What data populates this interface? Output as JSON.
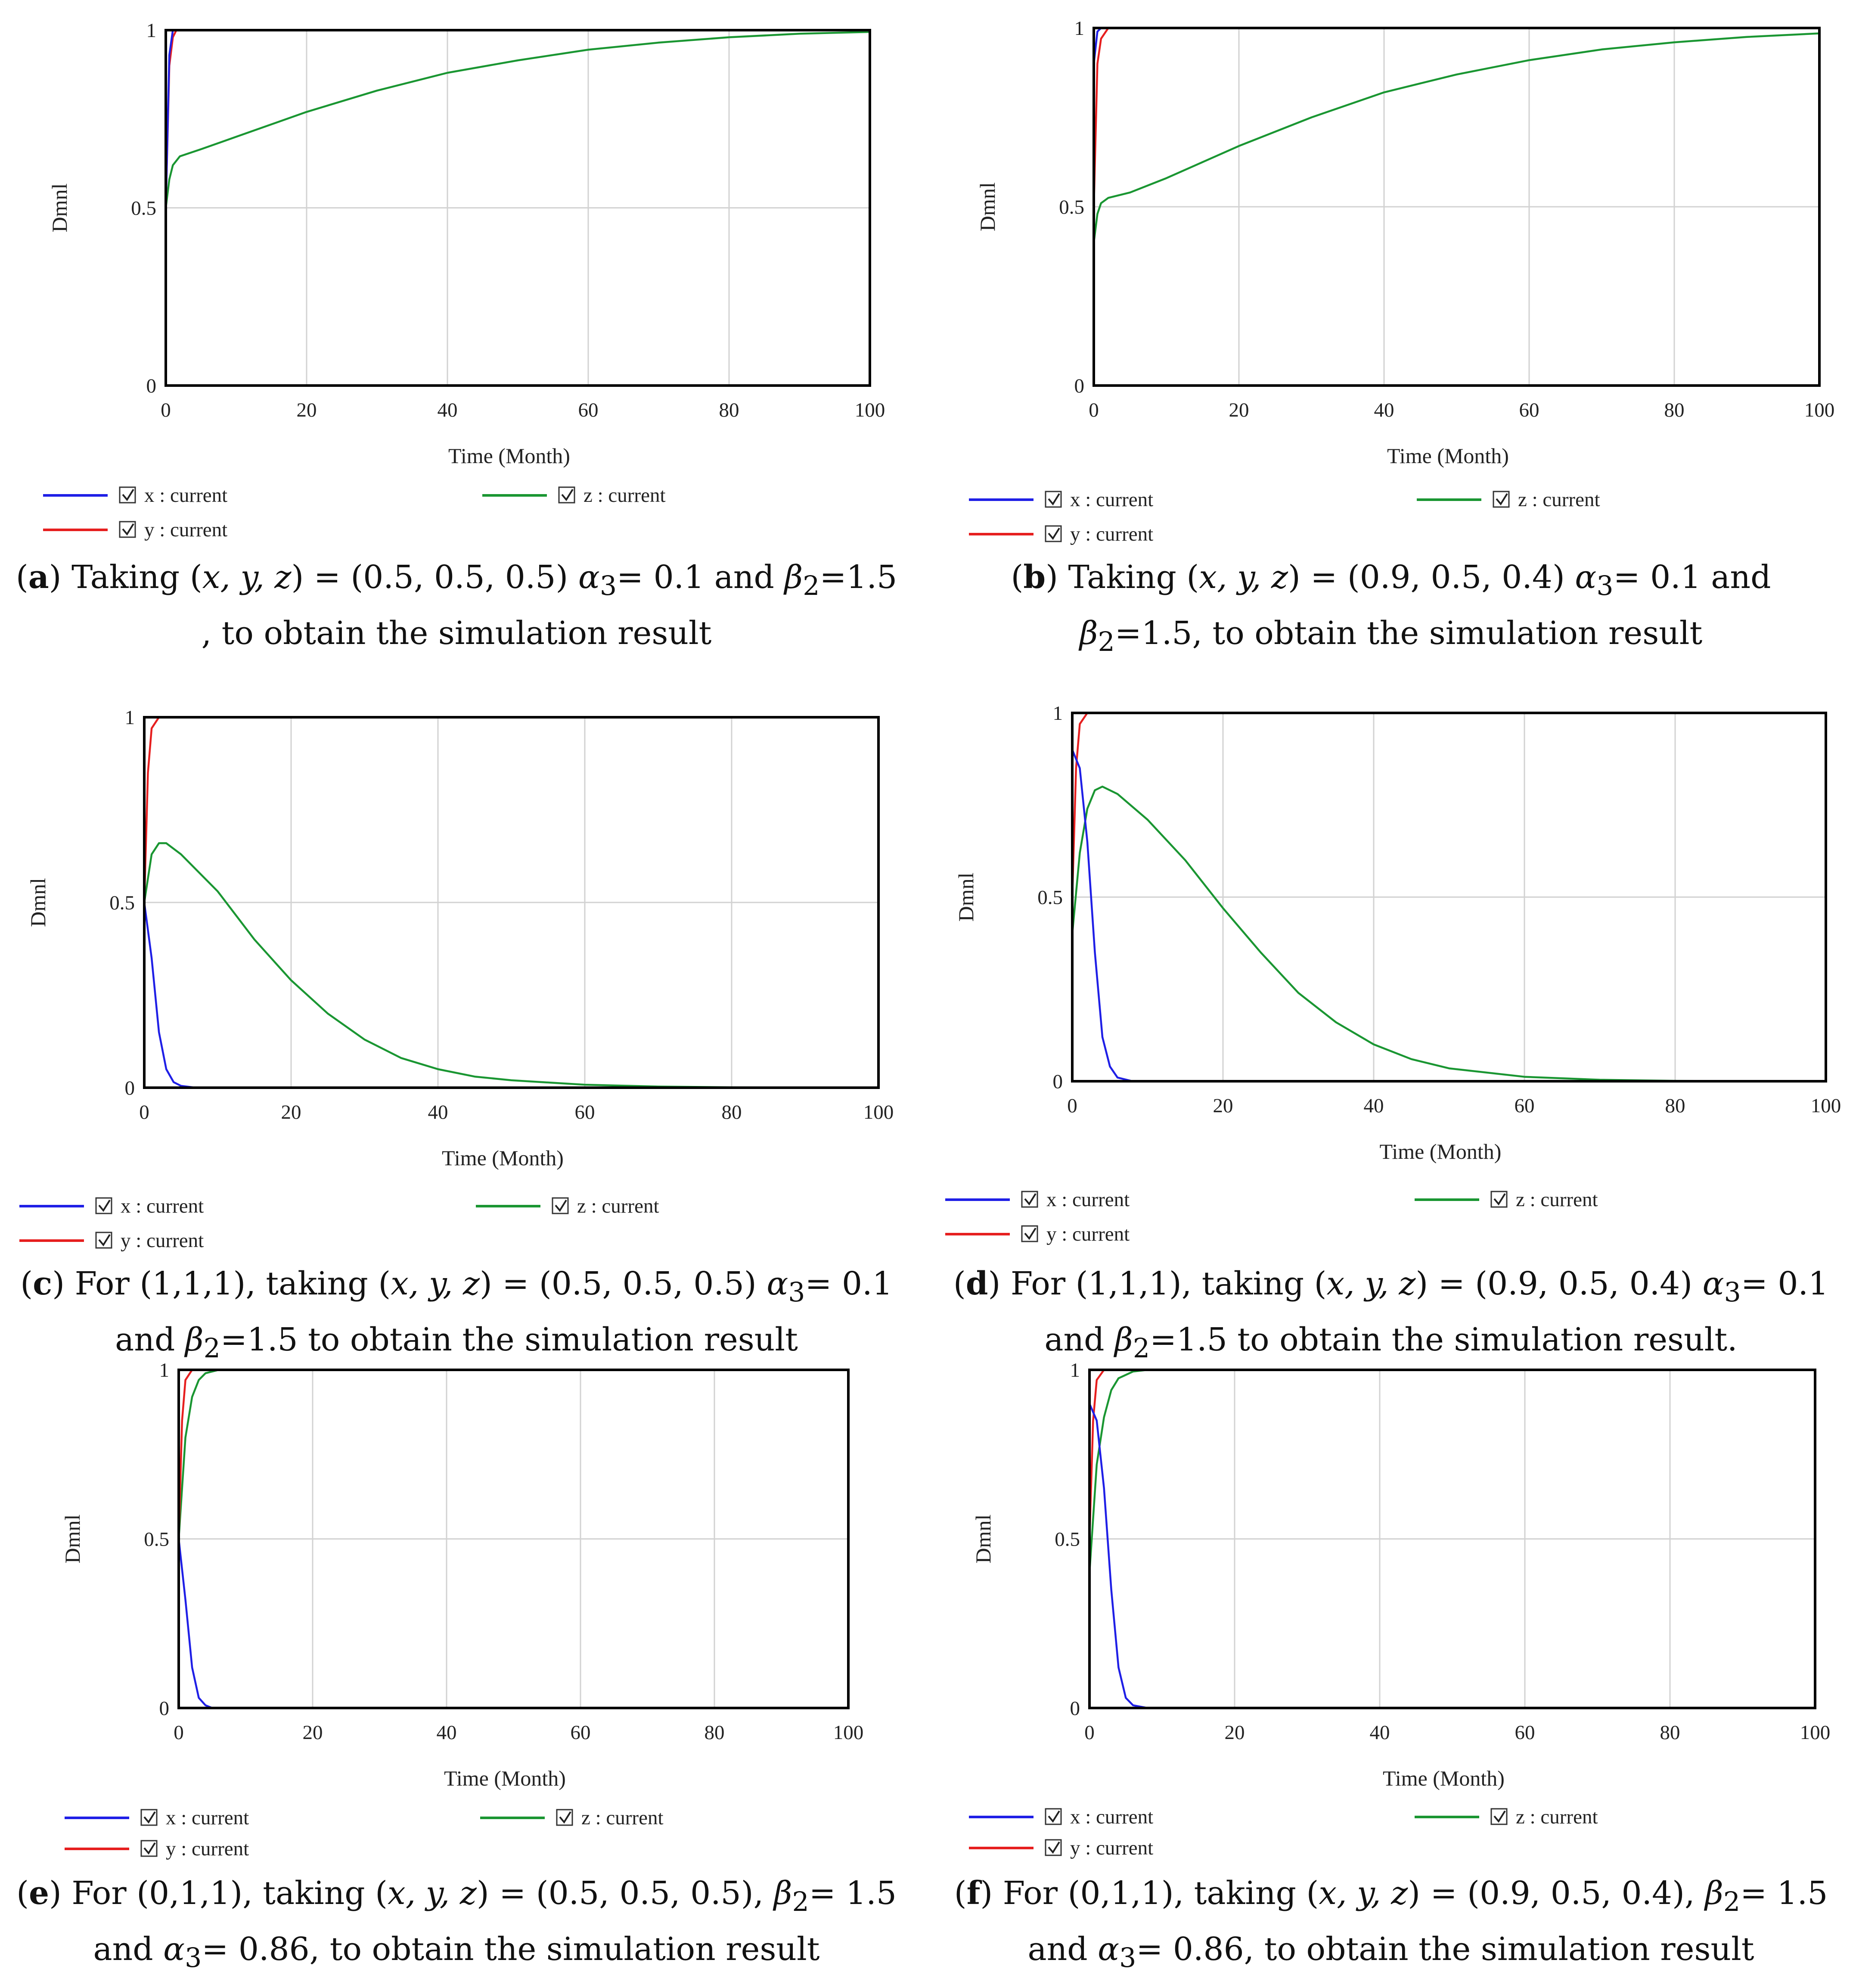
{
  "chart_data": [
    {
      "id": "a",
      "type": "line",
      "xlabel": "Time (Month)",
      "ylabel": "Dmnl",
      "xlim": [
        0,
        100
      ],
      "ylim": [
        0,
        1
      ],
      "xticks": [
        "0",
        "20",
        "40",
        "60",
        "80",
        "100"
      ],
      "yticks": [
        "0",
        "0.5",
        "1"
      ],
      "series": [
        {
          "name": "x : current",
          "color": "#1f1fe6",
          "points": [
            [
              0,
              0.5
            ],
            [
              0.5,
              0.93
            ],
            [
              1,
              1
            ],
            [
              100,
              1
            ]
          ]
        },
        {
          "name": "y : current",
          "color": "#e61f1f",
          "points": [
            [
              0,
              0.5
            ],
            [
              0.5,
              0.9
            ],
            [
              1,
              0.98
            ],
            [
              1.5,
              1
            ],
            [
              100,
              1
            ]
          ]
        },
        {
          "name": "z : current",
          "color": "#1a9632",
          "points": [
            [
              0,
              0.5
            ],
            [
              0.5,
              0.58
            ],
            [
              1,
              0.62
            ],
            [
              2,
              0.645
            ],
            [
              5,
              0.665
            ],
            [
              10,
              0.7
            ],
            [
              20,
              0.77
            ],
            [
              30,
              0.83
            ],
            [
              40,
              0.88
            ],
            [
              50,
              0.915
            ],
            [
              60,
              0.945
            ],
            [
              70,
              0.965
            ],
            [
              80,
              0.98
            ],
            [
              90,
              0.99
            ],
            [
              100,
              0.995
            ]
          ]
        }
      ],
      "legend": [
        "x : current",
        "y : current",
        "z : current"
      ]
    },
    {
      "id": "b",
      "type": "line",
      "xlabel": "Time (Month)",
      "ylabel": "Dmnl",
      "xlim": [
        0,
        100
      ],
      "ylim": [
        0,
        1
      ],
      "xticks": [
        "0",
        "20",
        "40",
        "60",
        "80",
        "100"
      ],
      "yticks": [
        "0",
        "0.5",
        "1"
      ],
      "series": [
        {
          "name": "x : current",
          "color": "#1f1fe6",
          "points": [
            [
              0,
              0.9
            ],
            [
              0.5,
              0.99
            ],
            [
              1,
              1
            ],
            [
              100,
              1
            ]
          ]
        },
        {
          "name": "y : current",
          "color": "#e61f1f",
          "points": [
            [
              0,
              0.5
            ],
            [
              0.5,
              0.9
            ],
            [
              1,
              0.97
            ],
            [
              2,
              1
            ],
            [
              100,
              1
            ]
          ]
        },
        {
          "name": "z : current",
          "color": "#1a9632",
          "points": [
            [
              0,
              0.4
            ],
            [
              0.5,
              0.48
            ],
            [
              1,
              0.51
            ],
            [
              2,
              0.525
            ],
            [
              5,
              0.54
            ],
            [
              10,
              0.58
            ],
            [
              20,
              0.67
            ],
            [
              30,
              0.75
            ],
            [
              40,
              0.82
            ],
            [
              50,
              0.87
            ],
            [
              60,
              0.91
            ],
            [
              70,
              0.94
            ],
            [
              80,
              0.96
            ],
            [
              90,
              0.975
            ],
            [
              100,
              0.985
            ]
          ]
        }
      ],
      "legend": [
        "x : current",
        "y : current",
        "z : current"
      ]
    },
    {
      "id": "c",
      "type": "line",
      "xlabel": "Time (Month)",
      "ylabel": "Dmnl",
      "xlim": [
        0,
        100
      ],
      "ylim": [
        0,
        1
      ],
      "xticks": [
        "0",
        "20",
        "40",
        "60",
        "80",
        "100"
      ],
      "yticks": [
        "0",
        "0.5",
        "1"
      ],
      "series": [
        {
          "name": "x : current",
          "color": "#1f1fe6",
          "points": [
            [
              0,
              0.5
            ],
            [
              1,
              0.35
            ],
            [
              2,
              0.15
            ],
            [
              3,
              0.05
            ],
            [
              4,
              0.015
            ],
            [
              5,
              0.005
            ],
            [
              7,
              0
            ],
            [
              100,
              0
            ]
          ]
        },
        {
          "name": "y : current",
          "color": "#e61f1f",
          "points": [
            [
              0,
              0.5
            ],
            [
              0.5,
              0.85
            ],
            [
              1,
              0.97
            ],
            [
              2,
              1
            ],
            [
              100,
              1
            ]
          ]
        },
        {
          "name": "z : current",
          "color": "#1a9632",
          "points": [
            [
              0,
              0.5
            ],
            [
              1,
              0.63
            ],
            [
              2,
              0.66
            ],
            [
              3,
              0.66
            ],
            [
              5,
              0.63
            ],
            [
              10,
              0.53
            ],
            [
              15,
              0.4
            ],
            [
              20,
              0.29
            ],
            [
              25,
              0.2
            ],
            [
              30,
              0.13
            ],
            [
              35,
              0.08
            ],
            [
              40,
              0.05
            ],
            [
              45,
              0.03
            ],
            [
              50,
              0.02
            ],
            [
              60,
              0.008
            ],
            [
              70,
              0.003
            ],
            [
              80,
              0.001
            ],
            [
              100,
              0
            ]
          ]
        }
      ],
      "legend": [
        "x : current",
        "y : current",
        "z : current"
      ]
    },
    {
      "id": "d",
      "type": "line",
      "xlabel": "Time (Month)",
      "ylabel": "Dmnl",
      "xlim": [
        0,
        100
      ],
      "ylim": [
        0,
        1
      ],
      "xticks": [
        "0",
        "20",
        "40",
        "60",
        "80",
        "100"
      ],
      "yticks": [
        "0",
        "0.5",
        "1"
      ],
      "series": [
        {
          "name": "x : current",
          "color": "#1f1fe6",
          "points": [
            [
              0,
              0.9
            ],
            [
              1,
              0.85
            ],
            [
              2,
              0.65
            ],
            [
              3,
              0.35
            ],
            [
              4,
              0.12
            ],
            [
              5,
              0.04
            ],
            [
              6,
              0.01
            ],
            [
              8,
              0
            ],
            [
              100,
              0
            ]
          ]
        },
        {
          "name": "y : current",
          "color": "#e61f1f",
          "points": [
            [
              0,
              0.5
            ],
            [
              0.5,
              0.85
            ],
            [
              1,
              0.97
            ],
            [
              2,
              1
            ],
            [
              100,
              1
            ]
          ]
        },
        {
          "name": "z : current",
          "color": "#1a9632",
          "points": [
            [
              0,
              0.4
            ],
            [
              1,
              0.62
            ],
            [
              2,
              0.74
            ],
            [
              3,
              0.79
            ],
            [
              4,
              0.8
            ],
            [
              6,
              0.78
            ],
            [
              10,
              0.71
            ],
            [
              15,
              0.6
            ],
            [
              20,
              0.47
            ],
            [
              25,
              0.35
            ],
            [
              30,
              0.24
            ],
            [
              35,
              0.16
            ],
            [
              40,
              0.1
            ],
            [
              45,
              0.06
            ],
            [
              50,
              0.035
            ],
            [
              60,
              0.012
            ],
            [
              70,
              0.004
            ],
            [
              80,
              0.001
            ],
            [
              100,
              0
            ]
          ]
        }
      ],
      "legend": [
        "x : current",
        "y : current",
        "z : current"
      ]
    },
    {
      "id": "e",
      "type": "line",
      "xlabel": "Time (Month)",
      "ylabel": "Dmnl",
      "xlim": [
        0,
        100
      ],
      "ylim": [
        0,
        1
      ],
      "xticks": [
        "0",
        "20",
        "40",
        "60",
        "80",
        "100"
      ],
      "yticks": [
        "0",
        "0.5",
        "1"
      ],
      "series": [
        {
          "name": "x : current",
          "color": "#1f1fe6",
          "points": [
            [
              0,
              0.5
            ],
            [
              1,
              0.32
            ],
            [
              2,
              0.12
            ],
            [
              3,
              0.03
            ],
            [
              4,
              0.008
            ],
            [
              5,
              0
            ],
            [
              100,
              0
            ]
          ]
        },
        {
          "name": "y : current",
          "color": "#e61f1f",
          "points": [
            [
              0,
              0.5
            ],
            [
              0.5,
              0.85
            ],
            [
              1,
              0.97
            ],
            [
              2,
              1
            ],
            [
              100,
              1
            ]
          ]
        },
        {
          "name": "z : current",
          "color": "#1a9632",
          "points": [
            [
              0,
              0.5
            ],
            [
              1,
              0.8
            ],
            [
              2,
              0.92
            ],
            [
              3,
              0.97
            ],
            [
              4,
              0.99
            ],
            [
              6,
              1
            ],
            [
              100,
              1
            ]
          ]
        }
      ],
      "legend": [
        "x : current",
        "y : current",
        "z : current"
      ]
    },
    {
      "id": "f",
      "type": "line",
      "xlabel": "Time (Month)",
      "ylabel": "Dmnl",
      "xlim": [
        0,
        100
      ],
      "ylim": [
        0,
        1
      ],
      "xticks": [
        "0",
        "20",
        "40",
        "60",
        "80",
        "100"
      ],
      "yticks": [
        "0",
        "0.5",
        "1"
      ],
      "series": [
        {
          "name": "x : current",
          "color": "#1f1fe6",
          "points": [
            [
              0,
              0.9
            ],
            [
              1,
              0.85
            ],
            [
              2,
              0.65
            ],
            [
              3,
              0.35
            ],
            [
              4,
              0.12
            ],
            [
              5,
              0.03
            ],
            [
              6,
              0.008
            ],
            [
              8,
              0
            ],
            [
              100,
              0
            ]
          ]
        },
        {
          "name": "y : current",
          "color": "#e61f1f",
          "points": [
            [
              0,
              0.5
            ],
            [
              0.5,
              0.85
            ],
            [
              1,
              0.97
            ],
            [
              2,
              1
            ],
            [
              100,
              1
            ]
          ]
        },
        {
          "name": "z : current",
          "color": "#1a9632",
          "points": [
            [
              0,
              0.4
            ],
            [
              1,
              0.72
            ],
            [
              2,
              0.86
            ],
            [
              3,
              0.94
            ],
            [
              4,
              0.975
            ],
            [
              6,
              0.995
            ],
            [
              8,
              1
            ],
            [
              100,
              1
            ]
          ]
        }
      ],
      "legend": [
        "x : current",
        "y : current",
        "z : current"
      ]
    }
  ],
  "captions": {
    "a": {
      "letter": "a",
      "p1": ") Taking (",
      "vars": "x, y, z",
      "p2": ") = (0.5, 0.5, 0.5)  ",
      "g1": "α",
      "s1": "3",
      "p3": "= 0.1 and  ",
      "g2": "β",
      "s2": "2",
      "p4": "=1.5 , to obtain the simulation result"
    },
    "b": {
      "letter": "b",
      "p1": ") Taking (",
      "vars": "x, y, z",
      "p2": ") = (0.9, 0.5, 0.4)  ",
      "g1": "α",
      "s1": "3",
      "p3": "= 0.1 and  ",
      "g2": "β",
      "s2": "2",
      "p4": "=1.5, to obtain the simulation result"
    },
    "c": {
      "letter": "c",
      "p1": ") For (1,1,1), taking (",
      "vars": "x, y, z",
      "p2": ") = (0.5, 0.5, 0.5)  ",
      "g1": "α",
      "s1": "3",
      "p3": "= 0.1 and ",
      "g2": "β",
      "s2": "2",
      "p4": "=1.5 to obtain the simulation result"
    },
    "d": {
      "letter": "d",
      "p1": ") For (1,1,1), taking (",
      "vars": "x, y, z",
      "p2": ") = (0.9, 0.5, 0.4)  ",
      "g1": "α",
      "s1": "3",
      "p3": "= 0.1 and ",
      "g2": "β",
      "s2": "2",
      "p4": "=1.5 to obtain the simulation result."
    },
    "e": {
      "letter": "e",
      "p1": ") For (0,1,1), taking (",
      "vars": "x, y, z",
      "p2": ") = (0.5, 0.5, 0.5),  ",
      "g1": "β",
      "s1": "2",
      "p3": "= 1.5 and ",
      "g2": "α",
      "s2": "3",
      "p4": "= 0.86, to obtain the simulation result"
    },
    "f": {
      "letter": "f",
      "p1": ") For (0,1,1), taking (",
      "vars": "x, y, z",
      "p2": ") = (0.9, 0.5, 0.4),  ",
      "g1": "β",
      "s1": "2",
      "p3": "= 1.5 and ",
      "g2": "α",
      "s2": "3",
      "p4": "= 0.86, to obtain the simulation result"
    }
  }
}
